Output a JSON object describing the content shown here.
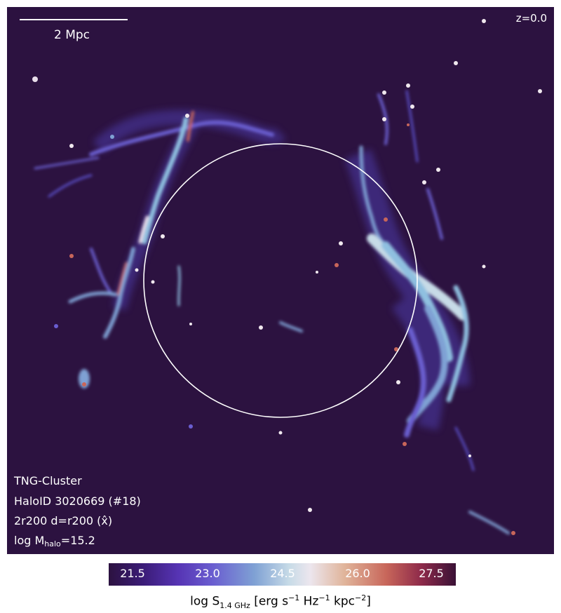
{
  "image": {
    "scalebar": {
      "label": "2 Mpc"
    },
    "redshift": "z=0.0",
    "info": {
      "simulation": "TNG-Cluster",
      "halo": "HaloID 3020669 (#18)",
      "projection": "2r200 d=r200 (x̂)",
      "mass_prefix": "log M",
      "mass_sub": "halo",
      "mass_suffix": "=15.2"
    }
  },
  "colorbar": {
    "ticks": [
      "21.5",
      "23.0",
      "24.5",
      "26.0",
      "27.5"
    ],
    "label_prefix": "log S",
    "label_sub": "1.4 GHz",
    "label_mid1": " [erg s",
    "label_sup1": "−1",
    "label_mid2": " Hz",
    "label_sup2": "−1",
    "label_mid3": " kpc",
    "label_sup3": "−2",
    "label_end": "]"
  },
  "colors": {
    "background": "#2c1240",
    "emission_low": "#5a4fc8",
    "emission_mid": "#8fc0e0",
    "emission_high": "#f0e8ee",
    "peak": "#c8665a",
    "circle": "#ffffff"
  }
}
